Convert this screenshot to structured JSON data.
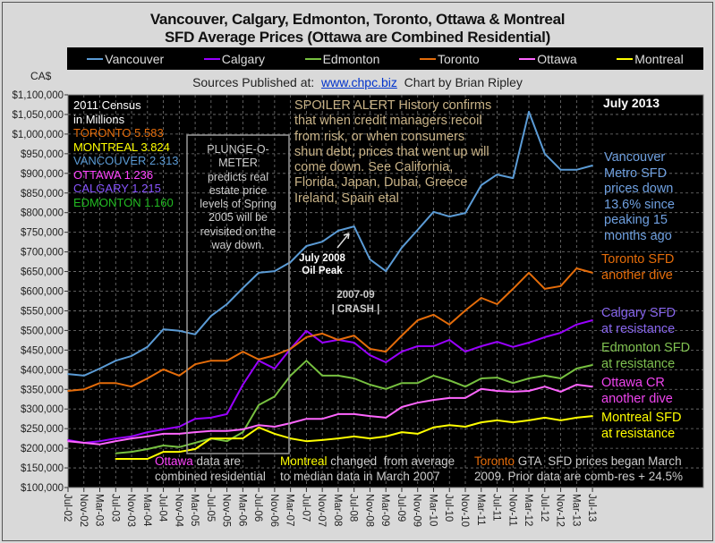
{
  "title": [
    "Vancouver, Calgary, Edmonton, Toronto, Ottawa & Montreal",
    "SFD Average Prices (Ottawa are Combined Residential)"
  ],
  "sources": {
    "prefix": "Sources Published at:",
    "link": "www.chpc.biz",
    "suffix": "Chart by Brian Ripley"
  },
  "chart_data": {
    "type": "line",
    "title": "Vancouver, Calgary, Edmonton, Toronto, Ottawa & Montreal SFD Average Prices (Ottawa are Combined Residential)",
    "ylabel": "CA$",
    "ylim": [
      100000,
      1100000
    ],
    "grid": true,
    "legend_placement": "top",
    "yticks": [
      "$1,100,000",
      "$1,050,000",
      "$1,000,000",
      "$950,000",
      "$900,000",
      "$850,000",
      "$800,000",
      "$750,000",
      "$700,000",
      "$650,000",
      "$600,000",
      "$550,000",
      "$500,000",
      "$450,000",
      "$400,000",
      "$350,000",
      "$300,000",
      "$250,000",
      "$200,000",
      "$150,000",
      "$100,000"
    ],
    "x": [
      "Jul-02",
      "Nov-02",
      "Mar-03",
      "Jul-03",
      "Nov-03",
      "Mar-04",
      "Jul-04",
      "Nov-04",
      "Mar-05",
      "Jul-05",
      "Nov-05",
      "Mar-06",
      "Jul-06",
      "Nov-06",
      "Mar-07",
      "Jul-07",
      "Nov-07",
      "Mar-08",
      "Jul-08",
      "Nov-08",
      "Mar-09",
      "Jul-09",
      "Nov-09",
      "Mar-10",
      "Jul-10",
      "Nov-10",
      "Mar-11",
      "Jul-11",
      "Nov-11",
      "Mar-12",
      "Jul-12",
      "Nov-12",
      "Mar-13",
      "Jul-13"
    ],
    "series": [
      {
        "name": "Vancouver",
        "color": "#5b9bd5",
        "values": [
          389000,
          385000,
          403000,
          423000,
          435000,
          458000,
          503000,
          499000,
          490000,
          537000,
          567000,
          608000,
          647000,
          651000,
          674000,
          715000,
          726000,
          754000,
          765000,
          681000,
          651000,
          711000,
          756000,
          802000,
          790000,
          799000,
          870000,
          897000,
          888000,
          1057000,
          950000,
          909000,
          909000,
          920000
        ]
      },
      {
        "name": "Calgary",
        "color": "#9900ff",
        "values": [
          221000,
          214000,
          218000,
          225000,
          230000,
          241000,
          248000,
          255000,
          275000,
          278000,
          287000,
          362000,
          423000,
          403000,
          453000,
          499000,
          469000,
          476000,
          469000,
          437000,
          419000,
          446000,
          460000,
          460000,
          476000,
          446000,
          460000,
          471000,
          458000,
          469000,
          483000,
          494000,
          515000,
          526000
        ]
      },
      {
        "name": "Edmonton",
        "color": "#77c040",
        "values": [
          null,
          null,
          null,
          187000,
          191000,
          198000,
          207000,
          203000,
          214000,
          225000,
          218000,
          241000,
          310000,
          332000,
          385000,
          423000,
          385000,
          385000,
          378000,
          362000,
          351000,
          366000,
          366000,
          385000,
          373000,
          357000,
          378000,
          380000,
          366000,
          378000,
          385000,
          378000,
          403000,
          412000
        ]
      },
      {
        "name": "Toronto",
        "color": "#e46c0a",
        "values": [
          346000,
          350000,
          366000,
          366000,
          357000,
          378000,
          401000,
          385000,
          414000,
          423000,
          423000,
          446000,
          426000,
          437000,
          453000,
          483000,
          492000,
          476000,
          487000,
          453000,
          446000,
          487000,
          526000,
          540000,
          515000,
          551000,
          583000,
          567000,
          606000,
          647000,
          606000,
          613000,
          658000,
          647000
        ]
      },
      {
        "name": "Ottawa",
        "color": "#ff66ff",
        "values": [
          218000,
          214000,
          210000,
          218000,
          225000,
          230000,
          237000,
          237000,
          241000,
          244000,
          244000,
          248000,
          259000,
          255000,
          264000,
          275000,
          275000,
          287000,
          287000,
          282000,
          278000,
          305000,
          316000,
          323000,
          328000,
          328000,
          351000,
          346000,
          344000,
          346000,
          357000,
          344000,
          362000,
          357000
        ]
      },
      {
        "name": "Montreal",
        "color": "#ffff00",
        "values": [
          null,
          null,
          null,
          173000,
          173000,
          173000,
          191000,
          191000,
          198000,
          225000,
          225000,
          225000,
          253000,
          237000,
          225000,
          218000,
          221000,
          225000,
          230000,
          225000,
          230000,
          241000,
          237000,
          253000,
          259000,
          255000,
          266000,
          271000,
          266000,
          271000,
          278000,
          271000,
          278000,
          282000
        ]
      }
    ],
    "annotations": {
      "census": {
        "head": [
          "2011 Census",
          "in Millions"
        ],
        "rows": [
          {
            "text": "TORONTO 5.583",
            "color": "#e46c0a"
          },
          {
            "text": "MONTREAL 3.824",
            "color": "#ffff00"
          },
          {
            "text": "VANCOUVER 2.313",
            "color": "#5b9bd5"
          },
          {
            "text": "OTTAWA 1.236",
            "color": "#ff44ff"
          },
          {
            "text": "CALGARY 1.215",
            "color": "#8855ff"
          },
          {
            "text": "EDMONTON 1.160",
            "color": "#22bb22"
          }
        ]
      },
      "plunge": [
        "PLUNGE-O-",
        "METER",
        "predicts real",
        "estate price",
        "levels of Spring",
        "2005 will be",
        "revisited on the",
        "way down."
      ],
      "spoiler": [
        "SPOILER ALERT History confirms",
        "that when credit managers recoil",
        "from risk, or when consumers",
        "shun debt, prices that went up will",
        "come down. See California,",
        "Florida, Japan, Dubai, Greece",
        "Ireland, Spain etal"
      ],
      "oil_peak": [
        "July 2008",
        "Oil Peak"
      ],
      "crash": [
        "2007-09",
        "| CRASH |"
      ],
      "date": "July 2013",
      "notes": [
        {
          "lines": [
            "Vancouver",
            "Metro SFD",
            "prices down",
            "13.6% since",
            "peaking 15",
            "months ago"
          ],
          "color": "#6fa0e0"
        },
        {
          "lines": [
            "Toronto SFD",
            "another dive"
          ],
          "color": "#e46c0a"
        },
        {
          "lines": [
            "Calgary SFD",
            "at resistance"
          ],
          "color": "#8866ee"
        },
        {
          "lines": [
            "Edmonton SFD",
            "at resistance"
          ],
          "color": "#7fc050"
        },
        {
          "lines": [
            "Ottawa CR",
            "another dive"
          ],
          "color": "#ee44ee"
        },
        {
          "lines": [
            "Montreal SFD",
            "at resistance"
          ],
          "color": "#ffff00"
        }
      ],
      "bottom": {
        "ottawa": {
          "city": "Ottawa",
          "rest1": " data are",
          "line2": "combined residential"
        },
        "montreal": {
          "city": "Montreal",
          "rest1": " changed  from average",
          "line2": "to median data in March 2007"
        },
        "toronto": {
          "city": "Toronto",
          "rest1": " GTA  SFD prices began March",
          "line2": "2009. Prior data are comb-res + 24.5%"
        }
      }
    }
  }
}
